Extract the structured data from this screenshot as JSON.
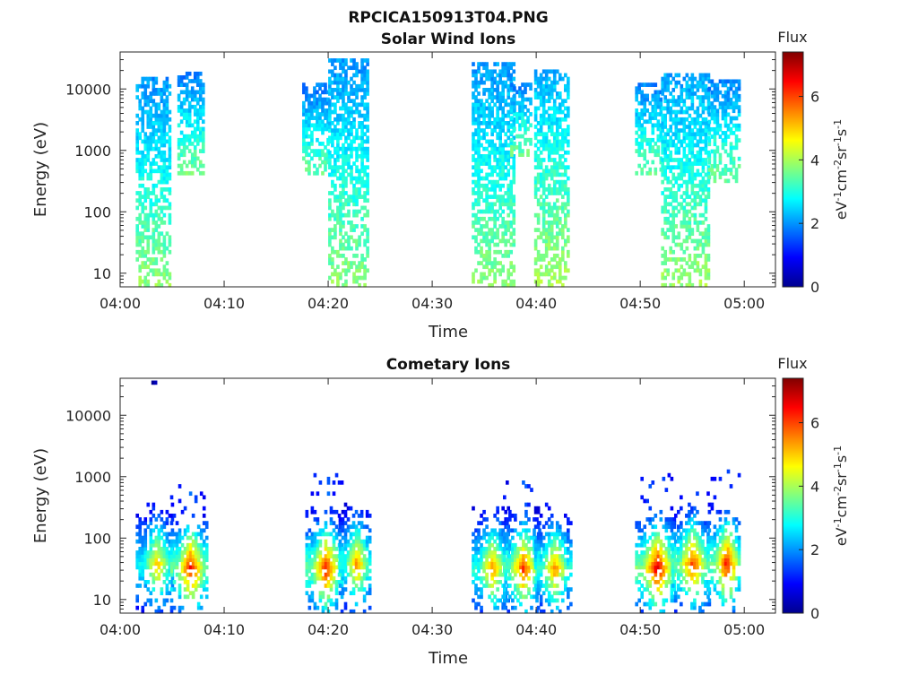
{
  "figure": {
    "title": "RPCICA150913T04.PNG"
  },
  "colorscale": {
    "stops": [
      "#00008f",
      "#0000ff",
      "#0080ff",
      "#00ffff",
      "#80ff80",
      "#ffff00",
      "#ff8000",
      "#ff0000",
      "#800000"
    ]
  },
  "chart_data": [
    {
      "type": "heatmap",
      "title": "Solar Wind Ions",
      "xlabel": "Time",
      "ylabel": "Energy (eV)",
      "xlim": [
        "04:00",
        "05:03"
      ],
      "ylim": [
        6,
        40000
      ],
      "yscale": "log",
      "xticks": [
        "04:00",
        "04:10",
        "04:20",
        "04:30",
        "04:40",
        "04:50",
        "05:00"
      ],
      "yticks": [
        10,
        100,
        1000,
        10000
      ],
      "ytick_labels": [
        "10",
        "100",
        "1000",
        "10000"
      ],
      "colorbar": {
        "label": "Flux",
        "units": "eV-1cm-2sr-1s-1",
        "range": [
          0,
          7.4
        ],
        "ticks": [
          0,
          2,
          4,
          6
        ]
      },
      "clusters": [
        {
          "t_start": "04:01.5",
          "t_end": "04:04.8",
          "e_min": 6,
          "e_max": 14000,
          "flux": 2.0
        },
        {
          "t_start": "04:05.5",
          "t_end": "04:08.0",
          "e_min": 400,
          "e_max": 17000,
          "flux": 1.8
        },
        {
          "t_start": "04:17.5",
          "t_end": "04:20.0",
          "e_min": 400,
          "e_max": 12000,
          "flux": 1.7
        },
        {
          "t_start": "04:20.0",
          "t_end": "04:23.8",
          "e_min": 6,
          "e_max": 28000,
          "flux": 2.0
        },
        {
          "t_start": "04:33.8",
          "t_end": "04:37.8",
          "e_min": 6,
          "e_max": 25000,
          "flux": 2.0
        },
        {
          "t_start": "04:37.5",
          "t_end": "04:39.5",
          "e_min": 800,
          "e_max": 12000,
          "flux": 1.8
        },
        {
          "t_start": "04:39.8",
          "t_end": "04:43.0",
          "e_min": 6,
          "e_max": 20000,
          "flux": 2.2
        },
        {
          "t_start": "04:49.5",
          "t_end": "04:52.0",
          "e_min": 400,
          "e_max": 12000,
          "flux": 1.8
        },
        {
          "t_start": "04:52.0",
          "t_end": "04:56.5",
          "e_min": 6,
          "e_max": 17000,
          "flux": 2.1
        },
        {
          "t_start": "04:56.5",
          "t_end": "04:59.5",
          "e_min": 300,
          "e_max": 14000,
          "flux": 1.8
        }
      ]
    },
    {
      "type": "heatmap",
      "title": "Cometary Ions",
      "xlabel": "Time",
      "ylabel": "Energy (eV)",
      "xlim": [
        "04:00",
        "05:03"
      ],
      "ylim": [
        6,
        40000
      ],
      "yscale": "log",
      "xticks": [
        "04:00",
        "04:10",
        "04:20",
        "04:30",
        "04:40",
        "04:50",
        "05:00"
      ],
      "yticks": [
        10,
        100,
        1000,
        10000
      ],
      "ytick_labels": [
        "10",
        "100",
        "1000",
        "10000"
      ],
      "colorbar": {
        "label": "Flux",
        "units": "eV-1cm-2sr-1s-1",
        "range": [
          0,
          7.4
        ],
        "ticks": [
          0,
          2,
          4,
          6
        ]
      },
      "clusters": [
        {
          "t_start": "04:01.5",
          "t_end": "04:05.0",
          "e_min": 6,
          "e_max": 350,
          "peak_e": 35,
          "flux": 5.2
        },
        {
          "t_start": "04:04.8",
          "t_end": "04:08.2",
          "e_min": 6,
          "e_max": 700,
          "peak_e": 30,
          "flux": 6.6
        },
        {
          "t_start": "04:17.8",
          "t_end": "04:21.2",
          "e_min": 6,
          "e_max": 1200,
          "peak_e": 30,
          "flux": 6.5
        },
        {
          "t_start": "04:21.0",
          "t_end": "04:24.0",
          "e_min": 6,
          "e_max": 350,
          "peak_e": 35,
          "flux": 5.6
        },
        {
          "t_start": "04:33.8",
          "t_end": "04:37.2",
          "e_min": 6,
          "e_max": 300,
          "peak_e": 30,
          "flux": 5.6
        },
        {
          "t_start": "04:36.8",
          "t_end": "04:40.2",
          "e_min": 6,
          "e_max": 800,
          "peak_e": 30,
          "flux": 6.3
        },
        {
          "t_start": "04:39.8",
          "t_end": "04:43.2",
          "e_min": 6,
          "e_max": 350,
          "peak_e": 30,
          "flux": 5.6
        },
        {
          "t_start": "04:49.5",
          "t_end": "04:53.2",
          "e_min": 6,
          "e_max": 1000,
          "peak_e": 30,
          "flux": 6.9
        },
        {
          "t_start": "04:53.0",
          "t_end": "04:56.5",
          "e_min": 6,
          "e_max": 550,
          "peak_e": 35,
          "flux": 6.3
        },
        {
          "t_start": "04:56.5",
          "t_end": "04:59.6",
          "e_min": 6,
          "e_max": 1200,
          "peak_e": 35,
          "flux": 6.6
        },
        {
          "t_start": "04:03.0",
          "t_end": "04:03.3",
          "e_min": 32000,
          "e_max": 36000,
          "peak_e": 34000,
          "flux": 0.3
        }
      ]
    }
  ]
}
